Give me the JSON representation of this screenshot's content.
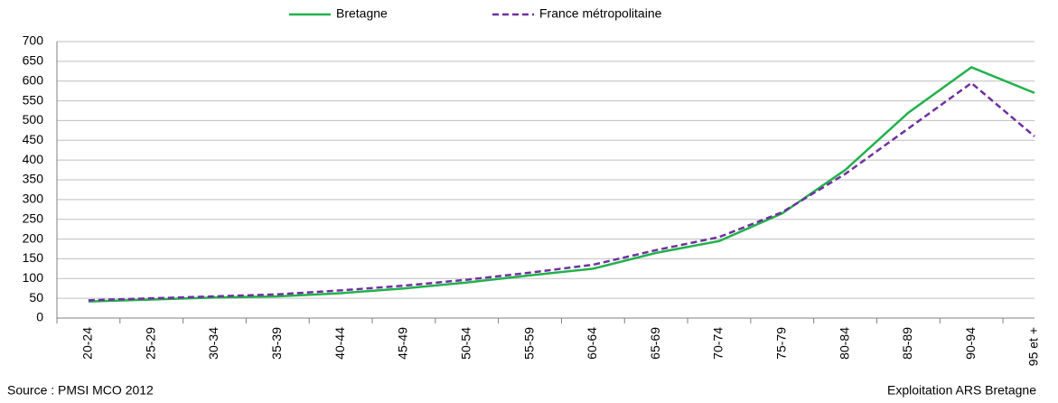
{
  "chart_data": {
    "type": "line",
    "categories": [
      "20-24",
      "25-29",
      "30-34",
      "35-39",
      "40-44",
      "45-49",
      "50-54",
      "55-59",
      "60-64",
      "65-69",
      "70-74",
      "75-79",
      "80-84",
      "85-89",
      "90-94",
      "95 et +"
    ],
    "series": [
      {
        "name": "Bretagne",
        "color": "#22b14c",
        "dash": false,
        "values": [
          42,
          47,
          52,
          55,
          63,
          75,
          90,
          108,
          125,
          165,
          195,
          265,
          375,
          520,
          635,
          570
        ]
      },
      {
        "name": "France métropolitaine",
        "color": "#7030a0",
        "dash": true,
        "values": [
          45,
          50,
          55,
          60,
          70,
          82,
          97,
          115,
          135,
          172,
          205,
          268,
          365,
          480,
          595,
          460
        ]
      }
    ],
    "ylim": [
      0,
      700
    ],
    "yticks": [
      0,
      50,
      100,
      150,
      200,
      250,
      300,
      350,
      400,
      450,
      500,
      550,
      600,
      650,
      700
    ],
    "grid": true,
    "source": "Source : PMSI MCO 2012",
    "credit": "Exploitation ARS Bretagne"
  }
}
